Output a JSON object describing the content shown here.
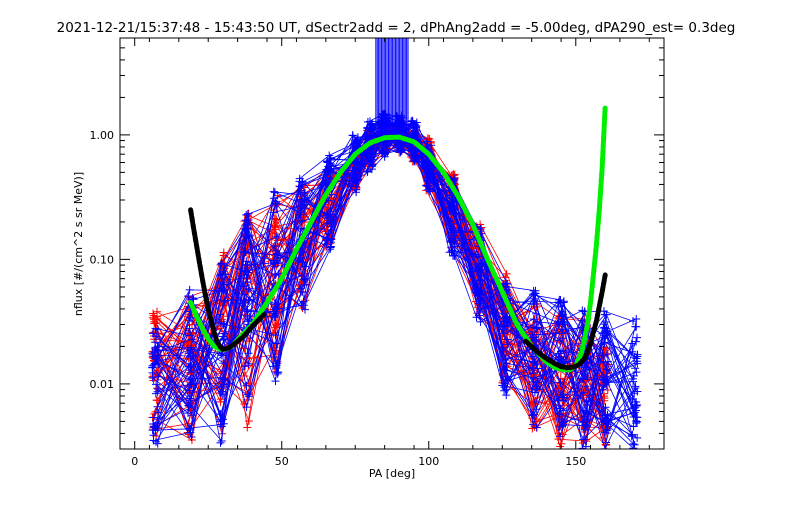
{
  "chart_data": {
    "type": "scatter",
    "title": "2021-12-21/15:37:48 - 15:43:50 UT, dSectr2add = 2, dPhAng2add = -5.00deg, dPA290_est=   0.3deg",
    "xlabel": "PA [deg]",
    "ylabel": "nflux [#/(cm^2 s sr MeV)]",
    "xlim": [
      -5,
      180
    ],
    "ylim": [
      0.003,
      6.0
    ],
    "yscale": "log",
    "x_ticks": [
      0,
      50,
      100,
      150
    ],
    "x_tick_labels": [
      "0",
      "50",
      "100",
      "150"
    ],
    "y_ticks": [
      0.01,
      0.1,
      1.0
    ],
    "y_tick_labels": [
      "0.01",
      "0.10",
      "1.00"
    ],
    "grid": false,
    "legend": "none",
    "colors": {
      "red": "#ff0000",
      "blue": "#0000ff",
      "green": "#00ee00",
      "black": "#000000"
    },
    "series": [
      {
        "color": "red",
        "marker": "plus",
        "style": "lines+markers",
        "x": [
          7,
          19,
          30,
          38,
          48,
          57,
          66,
          75,
          80,
          85,
          90,
          95,
          100,
          108,
          117,
          126,
          136,
          145,
          153,
          160
        ],
        "y_min": [
          0.003,
          0.003,
          0.003,
          0.004,
          0.012,
          0.04,
          0.12,
          0.35,
          0.55,
          0.7,
          0.72,
          0.6,
          0.35,
          0.12,
          0.035,
          0.01,
          0.004,
          0.003,
          0.003,
          0.003
        ],
        "y_max": [
          0.04,
          0.05,
          0.12,
          0.25,
          0.33,
          0.4,
          0.55,
          0.85,
          1.1,
          1.25,
          1.3,
          1.2,
          0.95,
          0.5,
          0.2,
          0.08,
          0.045,
          0.04,
          0.035,
          0.02
        ]
      },
      {
        "color": "blue",
        "marker": "plus",
        "style": "lines+markers",
        "x": [
          7,
          19,
          30,
          38,
          48,
          57,
          66,
          75,
          80,
          85,
          90,
          95,
          100,
          108,
          117,
          126,
          136,
          145,
          153,
          160,
          170
        ],
        "y_min": [
          0.003,
          0.003,
          0.003,
          0.004,
          0.01,
          0.03,
          0.1,
          0.3,
          0.5,
          0.65,
          0.7,
          0.6,
          0.35,
          0.1,
          0.03,
          0.008,
          0.004,
          0.003,
          0.003,
          0.003,
          0.003
        ],
        "y_max": [
          0.03,
          0.06,
          0.1,
          0.25,
          0.35,
          0.45,
          0.7,
          1.0,
          1.3,
          1.5,
          1.45,
          1.3,
          0.9,
          0.45,
          0.18,
          0.07,
          0.06,
          0.05,
          0.04,
          0.04,
          0.035
        ]
      },
      {
        "color": "blue",
        "style": "vertical-spike",
        "x_range": [
          82,
          93
        ],
        "y_range": [
          0.9,
          6.0
        ]
      },
      {
        "color": "green",
        "style": "thick-dashed",
        "x": [
          19,
          21,
          23,
          25,
          27,
          29,
          31,
          33,
          36,
          40,
          45,
          50,
          55,
          60,
          65,
          70,
          75,
          80,
          85,
          90,
          95,
          100,
          105,
          110,
          115,
          120,
          125,
          130,
          135,
          140,
          143,
          146,
          148,
          150,
          152,
          153,
          154,
          155,
          156,
          157,
          158,
          159,
          160
        ],
        "y": [
          0.045,
          0.035,
          0.028,
          0.023,
          0.02,
          0.019,
          0.019,
          0.02,
          0.024,
          0.03,
          0.045,
          0.07,
          0.12,
          0.2,
          0.33,
          0.5,
          0.7,
          0.86,
          0.95,
          0.96,
          0.88,
          0.7,
          0.5,
          0.32,
          0.19,
          0.1,
          0.055,
          0.03,
          0.02,
          0.015,
          0.0135,
          0.013,
          0.013,
          0.014,
          0.018,
          0.023,
          0.03,
          0.045,
          0.075,
          0.13,
          0.25,
          0.55,
          1.7
        ]
      },
      {
        "color": "black",
        "style": "thick-dashed",
        "x": [
          19,
          20,
          21,
          22,
          23,
          24,
          25,
          26,
          27,
          28,
          29,
          30,
          32,
          34,
          37,
          40,
          44
        ],
        "y": [
          0.25,
          0.18,
          0.13,
          0.095,
          0.07,
          0.052,
          0.04,
          0.032,
          0.026,
          0.022,
          0.02,
          0.019,
          0.0195,
          0.021,
          0.024,
          0.029,
          0.036
        ]
      },
      {
        "color": "black",
        "style": "thick-dashed",
        "x": [
          133,
          137,
          140,
          143,
          145,
          147,
          149,
          151,
          153,
          154,
          155,
          156,
          157,
          158,
          159,
          160
        ],
        "y": [
          0.022,
          0.018,
          0.016,
          0.0145,
          0.0138,
          0.0135,
          0.0136,
          0.0142,
          0.016,
          0.018,
          0.021,
          0.026,
          0.032,
          0.042,
          0.055,
          0.075
        ]
      }
    ]
  }
}
